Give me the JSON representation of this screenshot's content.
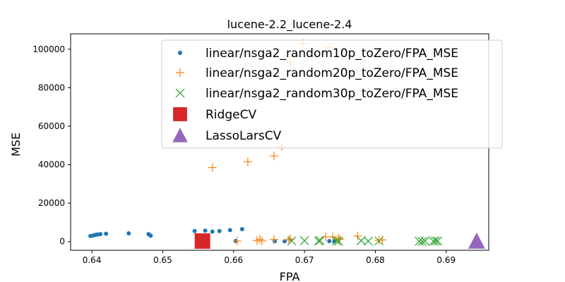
{
  "chart_data": {
    "type": "scatter",
    "title": "lucene-2.2_lucene-2.4",
    "xlabel": "FPA",
    "ylabel": "MSE",
    "xlim": [
      0.637,
      0.696
    ],
    "ylim": [
      -4500,
      108000
    ],
    "xticks": [
      0.64,
      0.65,
      0.66,
      0.67,
      0.68,
      0.69
    ],
    "xtick_labels": [
      "0.64",
      "0.65",
      "0.66",
      "0.67",
      "0.68",
      "0.69"
    ],
    "yticks": [
      0,
      20000,
      40000,
      60000,
      80000,
      100000
    ],
    "ytick_labels": [
      "0",
      "20000",
      "40000",
      "60000",
      "80000",
      "100000"
    ],
    "grid": false,
    "legend_position": "upper-right",
    "series": [
      {
        "name": "linear/nsga2_random10p_toZero/FPA_MSE",
        "marker": "dot",
        "color": "#1f77b4",
        "points": [
          [
            0.6398,
            2900
          ],
          [
            0.6402,
            3200
          ],
          [
            0.6405,
            3500
          ],
          [
            0.6408,
            3700
          ],
          [
            0.6412,
            3900
          ],
          [
            0.642,
            4100
          ],
          [
            0.6452,
            4300
          ],
          [
            0.648,
            3900
          ],
          [
            0.6483,
            3100
          ],
          [
            0.6545,
            5500
          ],
          [
            0.656,
            5700
          ],
          [
            0.657,
            5200
          ],
          [
            0.658,
            5500
          ],
          [
            0.6595,
            6000
          ],
          [
            0.6612,
            6500
          ],
          [
            0.6603,
            300
          ],
          [
            0.6658,
            200
          ],
          [
            0.6672,
            150
          ],
          [
            0.6735,
            250
          ],
          [
            0.6742,
            100
          ]
        ]
      },
      {
        "name": "linear/nsga2_random20p_toZero/FPA_MSE",
        "marker": "plus",
        "color": "#ff7f0e",
        "points": [
          [
            0.657,
            38500
          ],
          [
            0.662,
            41500
          ],
          [
            0.6657,
            44500
          ],
          [
            0.6668,
            49500
          ],
          [
            0.668,
            93000
          ],
          [
            0.6698,
            103000
          ],
          [
            0.6735,
            101000
          ],
          [
            0.6605,
            300
          ],
          [
            0.6633,
            500
          ],
          [
            0.6637,
            1200
          ],
          [
            0.664,
            400
          ],
          [
            0.6657,
            1100
          ],
          [
            0.6678,
            800
          ],
          [
            0.668,
            1400
          ],
          [
            0.673,
            2400
          ],
          [
            0.674,
            2500
          ],
          [
            0.6748,
            1800
          ],
          [
            0.675,
            1200
          ],
          [
            0.6775,
            2900
          ],
          [
            0.6805,
            700
          ],
          [
            0.681,
            900
          ]
        ]
      },
      {
        "name": "linear/nsga2_random30p_toZero/FPA_MSE",
        "marker": "x",
        "color": "#2ca02c",
        "points": [
          [
            0.6682,
            400
          ],
          [
            0.67,
            500
          ],
          [
            0.672,
            300
          ],
          [
            0.6722,
            600
          ],
          [
            0.6745,
            400
          ],
          [
            0.6748,
            200
          ],
          [
            0.678,
            500
          ],
          [
            0.679,
            300
          ],
          [
            0.6805,
            400
          ],
          [
            0.6862,
            200
          ],
          [
            0.6866,
            100
          ],
          [
            0.687,
            300
          ],
          [
            0.6882,
            200
          ],
          [
            0.6885,
            400
          ],
          [
            0.6888,
            300
          ]
        ]
      },
      {
        "name": "RidgeCV",
        "marker": "square",
        "color": "#d62728",
        "points": [
          [
            0.6556,
            300
          ]
        ]
      },
      {
        "name": "LassoLarsCV",
        "marker": "triangle",
        "color": "#9467bd",
        "points": [
          [
            0.6943,
            300
          ]
        ]
      }
    ]
  }
}
